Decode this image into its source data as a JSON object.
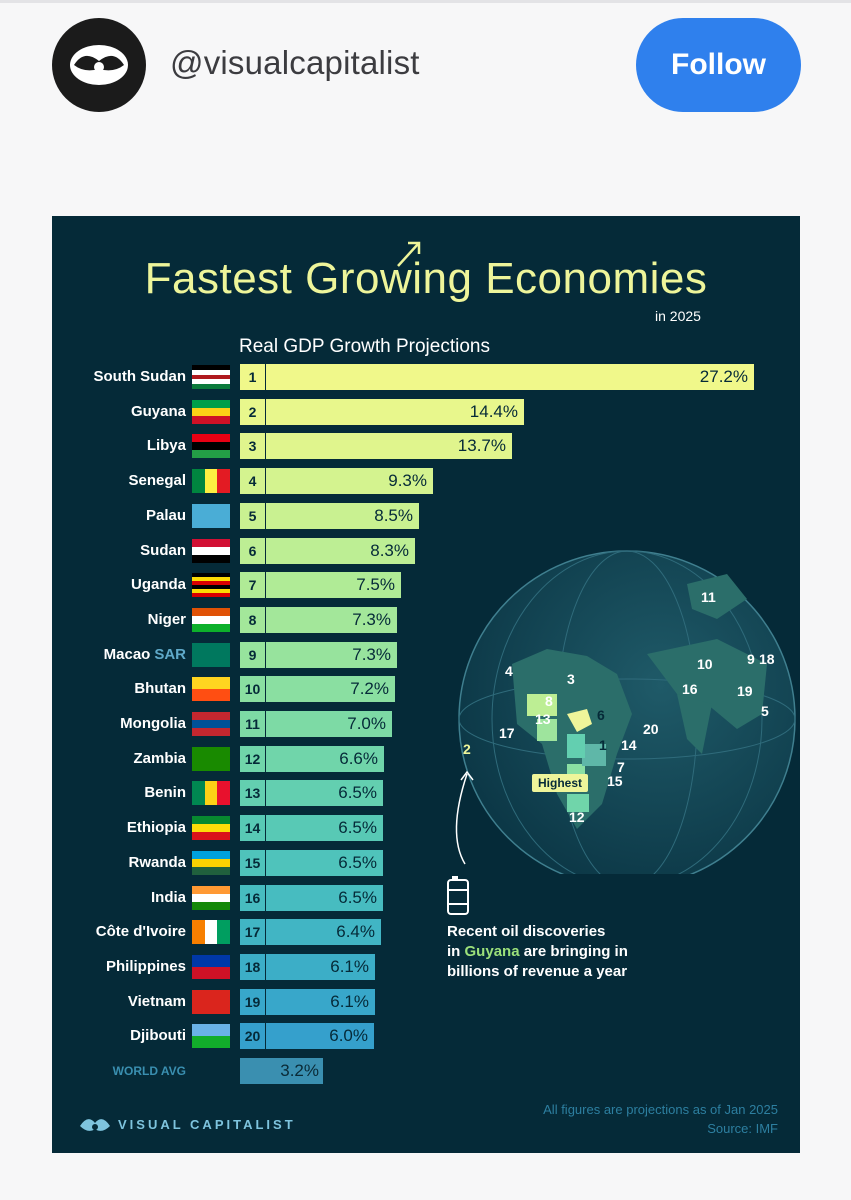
{
  "header": {
    "handle": "@visualcapitalist",
    "follow_label": "Follow"
  },
  "card": {
    "title": "Fastest Growing Economies",
    "year": "in 2025",
    "subtitle": "Real GDP Growth Projections",
    "world_label": "WORLD AVG",
    "note": {
      "line1": "Recent oil discoveries",
      "line2_pre": "in",
      "line2_hl": "Guyana",
      "line2_post": "are bringing in",
      "line3": "billions of revenue a year"
    },
    "map_badge": "Highest",
    "brand": "VISUAL CAPITALIST",
    "footnote": "All figures are projections as of Jan 2025",
    "source": "Source: IMF"
  },
  "chart_data": {
    "type": "bar",
    "orientation": "horizontal",
    "title": "Fastest Growing Economies in 2025",
    "subtitle": "Real GDP Growth Projections",
    "unit": "%",
    "xlim": [
      0,
      27.2
    ],
    "categories": [
      "South Sudan",
      "Guyana",
      "Libya",
      "Senegal",
      "Palau",
      "Sudan",
      "Uganda",
      "Niger",
      "Macao",
      "Bhutan",
      "Mongolia",
      "Zambia",
      "Benin",
      "Ethiopia",
      "Rwanda",
      "India",
      "Côte d'Ivoire",
      "Philippines",
      "Vietnam",
      "Djibouti"
    ],
    "category_suffix": {
      "Macao": "SAR"
    },
    "ranks": [
      "1",
      "2",
      "3",
      "4",
      "5",
      "6",
      "7",
      "8",
      "9",
      "10",
      "11",
      "12",
      "13",
      "14",
      "15",
      "16",
      "17",
      "18",
      "19",
      "20"
    ],
    "values": [
      27.2,
      14.4,
      13.7,
      9.3,
      8.5,
      8.3,
      7.5,
      7.3,
      7.3,
      7.2,
      7.0,
      6.6,
      6.5,
      6.5,
      6.5,
      6.5,
      6.4,
      6.1,
      6.1,
      6.0
    ],
    "labels": [
      "27.2%",
      "14.4%",
      "13.7%",
      "9.3%",
      "8.5%",
      "8.3%",
      "7.5%",
      "7.3%",
      "7.3%",
      "7.2%",
      "7.0%",
      "6.6%",
      "6.5%",
      "6.5%",
      "6.5%",
      "6.5%",
      "6.4%",
      "6.1%",
      "6.1%",
      "6.0%"
    ],
    "world_avg": {
      "label": "WORLD AVG",
      "value": 3.2,
      "value_label": "3.2%"
    },
    "colors": [
      "#f0f88a",
      "#e8f78c",
      "#e0f58d",
      "#d4f38f",
      "#c9f191",
      "#bdee94",
      "#b0eb96",
      "#a3e79a",
      "#97e39d",
      "#8adfa1",
      "#7ddaa5",
      "#70d5aa",
      "#63cfb0",
      "#58c9b5",
      "#4fc3bb",
      "#47bcc0",
      "#41b5c4",
      "#3caec7",
      "#38a7ca",
      "#35a0cc"
    ],
    "world_color": "#3a8fb0",
    "map_labels": [
      "11",
      "10",
      "9",
      "18",
      "16",
      "19",
      "5",
      "4",
      "3",
      "8",
      "6",
      "20",
      "17",
      "13",
      "1",
      "14",
      "7",
      "15",
      "12",
      "2"
    ]
  }
}
